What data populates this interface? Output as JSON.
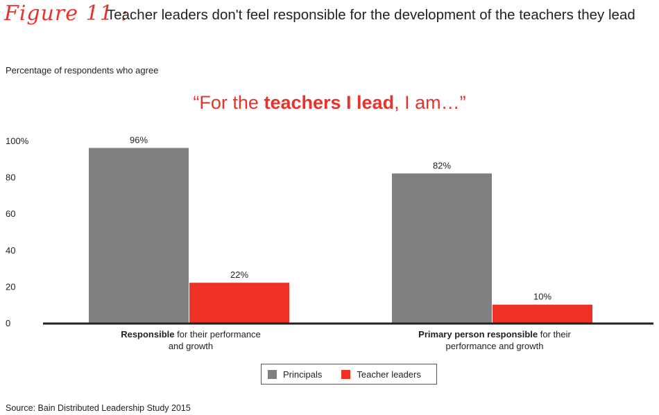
{
  "figure": {
    "label": "Figure 11 :",
    "title": "Teacher leaders don't feel responsible for the development of the teachers they lead"
  },
  "subtitle": "Percentage of respondents who agree",
  "quote": {
    "pre": "“For the ",
    "bold": "teachers I lead",
    "post": ", I am…”"
  },
  "source": "Source: Bain Distributed Leadership Study 2015",
  "colors": {
    "principals": "#808083",
    "teacher_leaders": "#ee3124",
    "accent": "#e8322a"
  },
  "chart_data": {
    "type": "bar",
    "categories": [
      {
        "bold": "Responsible",
        "rest_line1": " for their performance",
        "line2": "and growth"
      },
      {
        "bold": "Primary person responsible",
        "rest_line1": " for their",
        "line2": "performance and growth"
      }
    ],
    "series": [
      {
        "name": "Principals",
        "values": [
          96,
          82
        ],
        "labels": [
          "96%",
          "82%"
        ]
      },
      {
        "name": "Teacher leaders",
        "values": [
          22,
          10
        ],
        "labels": [
          "22%",
          "10%"
        ]
      }
    ],
    "ylim": [
      0,
      100
    ],
    "yticks": [
      {
        "value": 0,
        "label": "0"
      },
      {
        "value": 20,
        "label": "20"
      },
      {
        "value": 40,
        "label": "40"
      },
      {
        "value": 60,
        "label": "60"
      },
      {
        "value": 80,
        "label": "80"
      },
      {
        "value": 100,
        "label": "100%"
      }
    ],
    "legend": {
      "placement": "bottom-center"
    },
    "grid": false
  }
}
